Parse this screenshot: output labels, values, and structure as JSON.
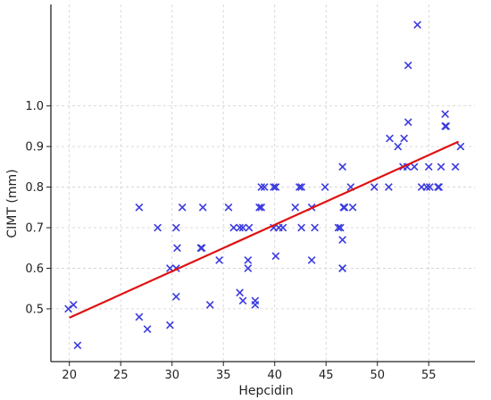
{
  "chart_data": {
    "type": "scatter",
    "xlabel": "Hepcidin",
    "ylabel": "CIMT (mm)",
    "xlim": [
      18.2,
      59.5
    ],
    "ylim": [
      0.37,
      1.25
    ],
    "x_ticks": [
      20,
      25,
      30,
      35,
      40,
      45,
      50,
      55
    ],
    "y_ticks": [
      0.5,
      0.6,
      0.7,
      0.8,
      0.9,
      1.0
    ],
    "x_tick_labels": [
      "20",
      "25",
      "30",
      "35",
      "40",
      "45",
      "50",
      "55"
    ],
    "y_tick_labels": [
      "0.5",
      "0.6",
      "0.7",
      "0.8",
      "0.9",
      "1.0"
    ],
    "grid": true,
    "grid_style": "dashed",
    "marker": "x",
    "colors": {
      "points": "#3a3ae0",
      "regression_line": "#e01010",
      "grid": "#cfcfcf",
      "axis": "#222222"
    },
    "series": [
      {
        "marker": "x",
        "points": [
          [
            19.9,
            0.5
          ],
          [
            20.4,
            0.51
          ],
          [
            20.8,
            0.41
          ],
          [
            26.8,
            0.75
          ],
          [
            26.8,
            0.48
          ],
          [
            27.6,
            0.45
          ],
          [
            28.6,
            0.7
          ],
          [
            29.8,
            0.6
          ],
          [
            29.8,
            0.46
          ],
          [
            30.4,
            0.7
          ],
          [
            30.5,
            0.65
          ],
          [
            30.4,
            0.6
          ],
          [
            30.4,
            0.53
          ],
          [
            31.0,
            0.75
          ],
          [
            32.8,
            0.65
          ],
          [
            32.9,
            0.65
          ],
          [
            33.0,
            0.75
          ],
          [
            33.7,
            0.51
          ],
          [
            34.6,
            0.62
          ],
          [
            35.5,
            0.75
          ],
          [
            36.0,
            0.7
          ],
          [
            36.6,
            0.7
          ],
          [
            36.9,
            0.7
          ],
          [
            36.6,
            0.54
          ],
          [
            36.9,
            0.52
          ],
          [
            37.5,
            0.7
          ],
          [
            37.4,
            0.62
          ],
          [
            37.4,
            0.6
          ],
          [
            38.1,
            0.52
          ],
          [
            38.1,
            0.51
          ],
          [
            38.5,
            0.75
          ],
          [
            38.7,
            0.75
          ],
          [
            38.7,
            0.8
          ],
          [
            39.0,
            0.8
          ],
          [
            39.9,
            0.8
          ],
          [
            40.1,
            0.8
          ],
          [
            39.9,
            0.7
          ],
          [
            40.4,
            0.7
          ],
          [
            40.8,
            0.7
          ],
          [
            40.1,
            0.63
          ],
          [
            42.0,
            0.75
          ],
          [
            42.4,
            0.8
          ],
          [
            42.6,
            0.8
          ],
          [
            42.6,
            0.7
          ],
          [
            43.6,
            0.75
          ],
          [
            43.9,
            0.7
          ],
          [
            43.6,
            0.62
          ],
          [
            44.9,
            0.8
          ],
          [
            46.2,
            0.7
          ],
          [
            46.4,
            0.7
          ],
          [
            46.6,
            0.85
          ],
          [
            46.7,
            0.75
          ],
          [
            46.8,
            0.75
          ],
          [
            46.6,
            0.67
          ],
          [
            46.6,
            0.6
          ],
          [
            46.6,
            0.6
          ],
          [
            47.6,
            0.75
          ],
          [
            47.4,
            0.8
          ],
          [
            49.7,
            0.8
          ],
          [
            51.1,
            0.8
          ],
          [
            51.2,
            0.92
          ],
          [
            52.0,
            0.9
          ],
          [
            52.5,
            0.85
          ],
          [
            52.6,
            0.92
          ],
          [
            52.9,
            0.85
          ],
          [
            53.0,
            0.96
          ],
          [
            53.0,
            1.1
          ],
          [
            53.6,
            0.85
          ],
          [
            53.9,
            1.2
          ],
          [
            54.3,
            0.8
          ],
          [
            54.8,
            0.8
          ],
          [
            55.1,
            0.8
          ],
          [
            55.0,
            0.85
          ],
          [
            55.9,
            0.8
          ],
          [
            56.0,
            0.8
          ],
          [
            56.2,
            0.85
          ],
          [
            56.6,
            0.98
          ],
          [
            56.6,
            0.95
          ],
          [
            56.7,
            0.95
          ],
          [
            57.6,
            0.85
          ],
          [
            58.1,
            0.9
          ]
        ]
      }
    ],
    "regression_line": {
      "x": [
        20.0,
        57.9
      ],
      "y": [
        0.478,
        0.912
      ]
    }
  }
}
